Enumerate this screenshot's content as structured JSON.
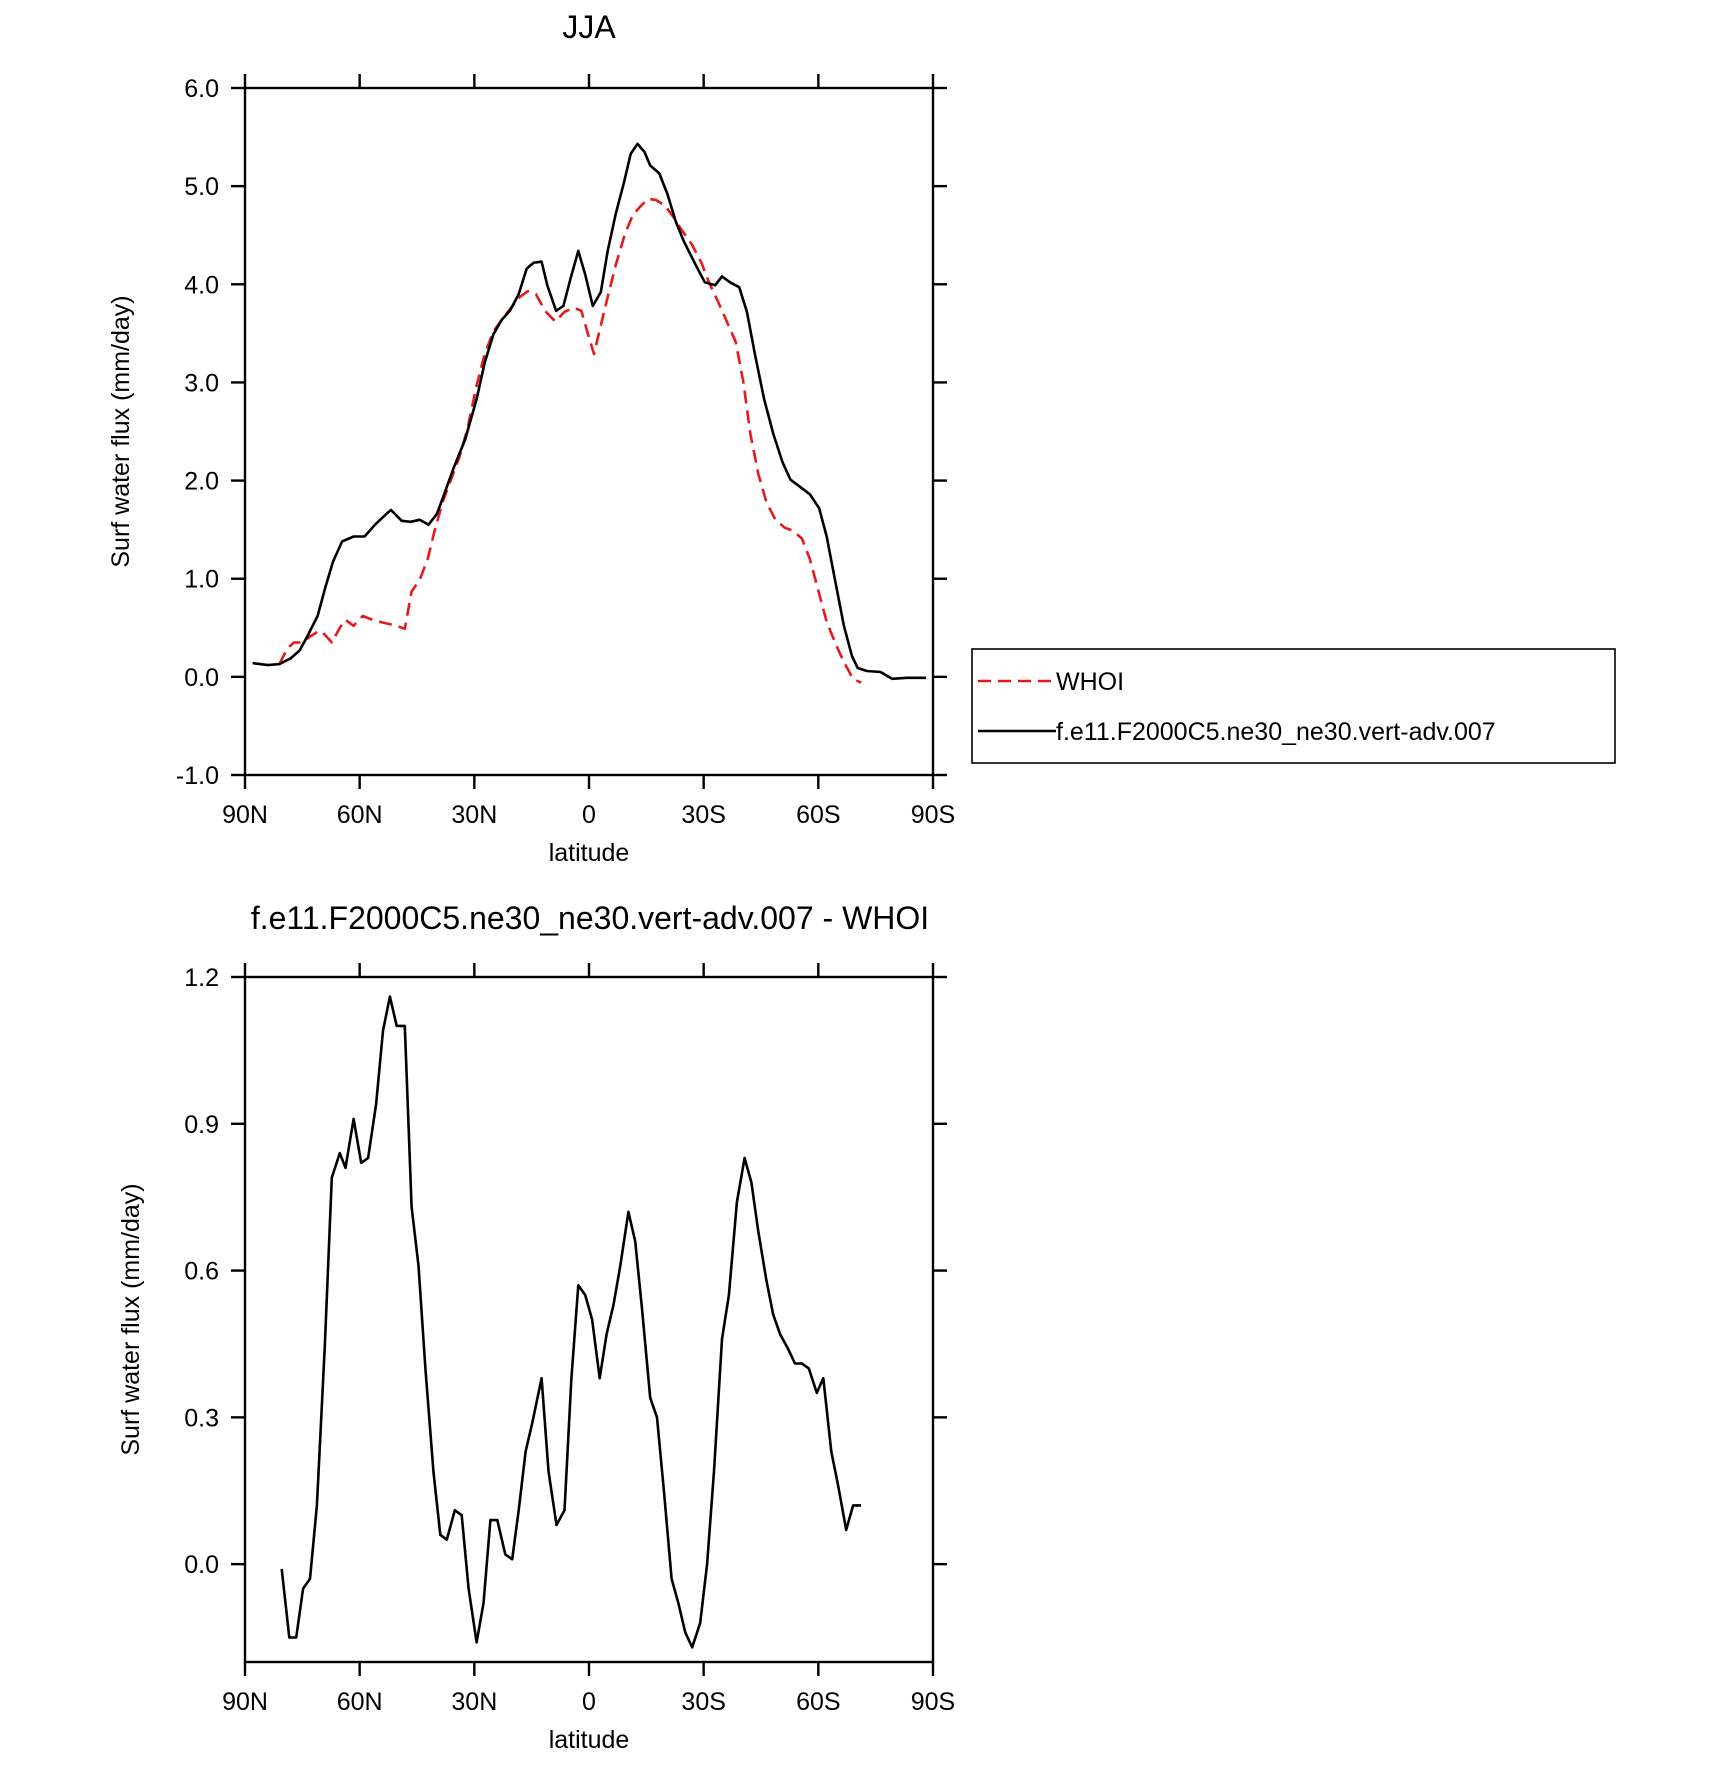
{
  "chart_data": [
    {
      "type": "line",
      "title": "JJA",
      "xlabel": "latitude",
      "ylabel": "Surf water flux (mm/day)",
      "xlim": [
        90,
        -90
      ],
      "xticks": [
        {
          "value": 90,
          "label": "90N"
        },
        {
          "value": 60,
          "label": "60N"
        },
        {
          "value": 30,
          "label": "30N"
        },
        0,
        {
          "value": -30,
          "label": "30S"
        },
        {
          "value": -60,
          "label": "60S"
        },
        {
          "value": -90,
          "label": "90S"
        }
      ],
      "ylim": [
        -1,
        6
      ],
      "yticks": [
        {
          "value": 6,
          "label": "6.0"
        },
        {
          "value": 5,
          "label": "5.0"
        },
        {
          "value": 4,
          "label": "4.0"
        },
        {
          "value": 3,
          "label": "3.0"
        },
        {
          "value": 2,
          "label": "2.0"
        },
        {
          "value": 1,
          "label": "1.0"
        },
        {
          "value": 0,
          "label": "0.0"
        },
        {
          "value": -1,
          "label": "-1.0"
        }
      ],
      "legend": "right",
      "series": [
        {
          "name": "WHOI",
          "color": "#e41a1c",
          "dashed": true,
          "x": [
            81,
            78.9,
            77.2,
            75.1,
            73,
            70.6,
            69.1,
            67.3,
            65.2,
            63.7,
            61.6,
            59.2,
            56.6,
            53.6,
            50.3,
            48.2,
            46.4,
            44.3,
            42.2,
            40.4,
            38.3,
            36.3,
            33.9,
            31.8,
            29.4,
            27.3,
            25,
            22.8,
            20.4,
            18.1,
            16,
            13.9,
            11.5,
            8.8,
            6.4,
            4.0,
            2.0,
            0.1,
            -1.3,
            -3.1,
            -4.9,
            -7.0,
            -9.4,
            -11.5,
            -13.6,
            -15.4,
            -17.5,
            -19.9,
            -22,
            -24.3,
            -27,
            -29.4,
            -31.5,
            -33.9,
            -36.3,
            -38.4,
            -40.4,
            -42.2,
            -44.3,
            -46.4,
            -48.8,
            -51.2,
            -53.3,
            -55.7,
            -57.8,
            -60.2,
            -62.2,
            -64.6,
            -66.7,
            -69.1,
            -71.2
          ],
          "values": [
            0.13,
            0.29,
            0.35,
            0.35,
            0.41,
            0.47,
            0.43,
            0.35,
            0.5,
            0.58,
            0.52,
            0.62,
            0.58,
            0.55,
            0.52,
            0.49,
            0.87,
            0.99,
            1.2,
            1.49,
            1.78,
            1.99,
            2.24,
            2.53,
            2.97,
            3.29,
            3.52,
            3.64,
            3.76,
            3.87,
            3.93,
            3.9,
            3.73,
            3.62,
            3.72,
            3.76,
            3.73,
            3.47,
            3.29,
            3.58,
            3.87,
            4.2,
            4.51,
            4.71,
            4.8,
            4.87,
            4.86,
            4.8,
            4.69,
            4.55,
            4.4,
            4.22,
            4.01,
            3.81,
            3.6,
            3.41,
            3.0,
            2.48,
            2.07,
            1.78,
            1.6,
            1.52,
            1.49,
            1.41,
            1.2,
            0.85,
            0.56,
            0.33,
            0.15,
            -0.02,
            -0.06
          ]
        },
        {
          "name": "f.e11.F2000C5.ne30_ne30.vert-adv.007",
          "color": "#000000",
          "dashed": false,
          "x": [
            88,
            84,
            81,
            78,
            75.7,
            73.6,
            71,
            69,
            67,
            64.6,
            61.6,
            58.7,
            56,
            53,
            51.8,
            49,
            46.7,
            44.3,
            42,
            39.8,
            37.8,
            35.4,
            32.4,
            29.4,
            27.3,
            25,
            22.8,
            20.7,
            18.4,
            16.3,
            14.5,
            12.4,
            10.9,
            8.6,
            6.7,
            4.9,
            2.8,
            1.0,
            -1.0,
            -3.1,
            -4.9,
            -7.0,
            -9.1,
            -10.9,
            -12.7,
            -14.5,
            -16.0,
            -18.4,
            -20.5,
            -22.8,
            -24.9,
            -27.9,
            -30.3,
            -33,
            -34.8,
            -36.9,
            -39.3,
            -41.3,
            -43.4,
            -45.8,
            -48.2,
            -50.6,
            -52.7,
            -55.4,
            -57.8,
            -60.2,
            -62.2,
            -64.6,
            -66.7,
            -68.8,
            -70.3,
            -72.7,
            -76.3,
            -79.3,
            -83.2,
            -88.2
          ],
          "values": [
            0.14,
            0.12,
            0.13,
            0.19,
            0.27,
            0.42,
            0.62,
            0.91,
            1.17,
            1.38,
            1.43,
            1.43,
            1.55,
            1.66,
            1.7,
            1.59,
            1.58,
            1.6,
            1.55,
            1.66,
            1.87,
            2.13,
            2.42,
            2.83,
            3.2,
            3.49,
            3.64,
            3.73,
            3.9,
            4.16,
            4.22,
            4.23,
            3.99,
            3.73,
            3.78,
            4.05,
            4.34,
            4.1,
            3.78,
            3.92,
            4.34,
            4.72,
            5.03,
            5.33,
            5.43,
            5.35,
            5.21,
            5.13,
            4.92,
            4.63,
            4.43,
            4.2,
            4.02,
            3.99,
            4.08,
            4.02,
            3.97,
            3.72,
            3.29,
            2.83,
            2.48,
            2.19,
            2.01,
            1.93,
            1.86,
            1.72,
            1.43,
            0.94,
            0.52,
            0.21,
            0.09,
            0.06,
            0.05,
            -0.02,
            -0.01,
            -0.01
          ]
        }
      ]
    },
    {
      "type": "line",
      "title": "f.e11.F2000C5.ne30_ne30.vert-adv.007 - WHOI",
      "xlabel": "latitude",
      "ylabel": "Surf water flux (mm/day)",
      "xlim": [
        90,
        -90
      ],
      "xticks": [
        {
          "value": 90,
          "label": "90N"
        },
        {
          "value": 60,
          "label": "60N"
        },
        {
          "value": 30,
          "label": "30N"
        },
        0,
        {
          "value": -30,
          "label": "30S"
        },
        {
          "value": -60,
          "label": "60S"
        },
        {
          "value": -90,
          "label": "90S"
        }
      ],
      "ylim": [
        -0.2,
        1.2
      ],
      "yticks": [
        1.2,
        0.9,
        0.6,
        0.3,
        {
          "value": 0,
          "label": "0.0"
        }
      ],
      "series": [
        {
          "color": "#000000",
          "dashed": false,
          "x": [
            80.4,
            78.4,
            76.6,
            74.8,
            73.0,
            71.2,
            69.1,
            67.3,
            65.2,
            63.7,
            61.6,
            59.6,
            57.8,
            55.7,
            53.9,
            52.1,
            50.3,
            48.2,
            46.4,
            44.6,
            42.8,
            40.7,
            38.9,
            37.2,
            35.1,
            33.3,
            31.5,
            29.4,
            27.6,
            25.8,
            24.0,
            21.9,
            20.1,
            18.4,
            16.6,
            14.8,
            12.4,
            10.6,
            8.5,
            6.4,
            4.6,
            2.8,
            1.0,
            -0.8,
            -2.8,
            -4.6,
            -6.4,
            -8.2,
            -10.3,
            -12.1,
            -13.9,
            -16.0,
            -17.8,
            -19.6,
            -21.6,
            -23.4,
            -25.2,
            -27.0,
            -29.1,
            -30.9,
            -32.7,
            -34.8,
            -36.6,
            -38.7,
            -40.7,
            -42.5,
            -44.3,
            -46.4,
            -48.2,
            -50.0,
            -52.1,
            -53.9,
            -55.7,
            -57.5,
            -59.6,
            -61.3,
            -63.4,
            -65.2,
            -67.3,
            -69.1,
            -71.2
          ],
          "values": [
            -0.01,
            -0.15,
            -0.15,
            -0.05,
            -0.03,
            0.12,
            0.45,
            0.79,
            0.84,
            0.81,
            0.91,
            0.82,
            0.83,
            0.94,
            1.09,
            1.16,
            1.1,
            1.1,
            0.73,
            0.61,
            0.4,
            0.19,
            0.06,
            0.05,
            0.11,
            0.1,
            -0.05,
            -0.16,
            -0.08,
            0.09,
            0.09,
            0.02,
            0.01,
            0.11,
            0.23,
            0.29,
            0.38,
            0.19,
            0.08,
            0.11,
            0.38,
            0.57,
            0.55,
            0.5,
            0.38,
            0.47,
            0.53,
            0.61,
            0.72,
            0.66,
            0.52,
            0.34,
            0.3,
            0.15,
            -0.03,
            -0.08,
            -0.14,
            -0.17,
            -0.12,
            0.0,
            0.19,
            0.46,
            0.55,
            0.74,
            0.83,
            0.78,
            0.68,
            0.58,
            0.51,
            0.47,
            0.44,
            0.41,
            0.41,
            0.4,
            0.35,
            0.38,
            0.23,
            0.16,
            0.07,
            0.12,
            0.12
          ]
        }
      ]
    }
  ]
}
